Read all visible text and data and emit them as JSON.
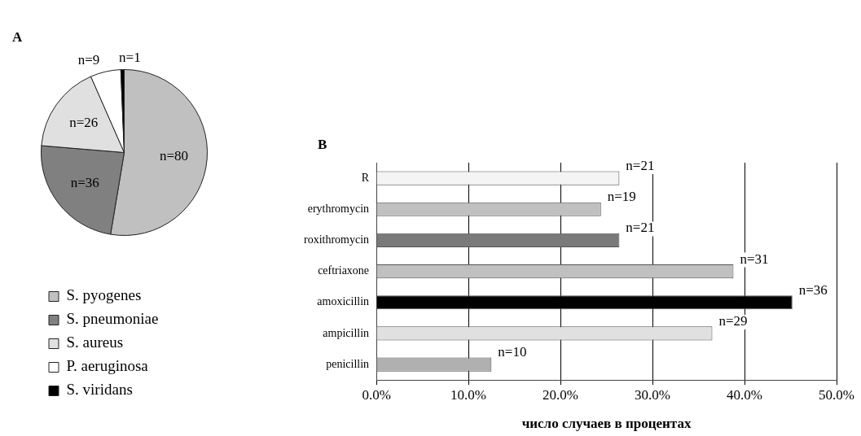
{
  "chart_data": [
    {
      "type": "pie",
      "title": "A",
      "categories": [
        "S. pyogenes",
        "S. pneumoniae",
        "S. aureus",
        "P. aeruginosa",
        "S. viridans"
      ],
      "values": [
        80,
        36,
        26,
        9,
        1
      ],
      "value_labels": [
        "n=80",
        "n=36",
        "n=26",
        "n=9",
        "n=1"
      ],
      "colors": [
        "#c0c0c0",
        "#808080",
        "#e0e0e0",
        "#ffffff",
        "#000000"
      ],
      "legend": "bottom left"
    },
    {
      "type": "bar",
      "title": "B",
      "orientation": "horizontal",
      "categories": [
        "R",
        "erythromycin",
        "roxithromycin",
        "ceftriaxone",
        "amoxicillin",
        "ampicillin",
        "penicillin"
      ],
      "values": [
        26.4,
        24.4,
        26.4,
        38.8,
        45.2,
        36.5,
        12.5
      ],
      "annotations": [
        {
          "text": "n=21",
          "x": 26.4,
          "y": "R"
        },
        {
          "text": "n=19",
          "x": 24.4,
          "y": "erythromycin"
        },
        {
          "text": "n=21",
          "x": 26.4,
          "y": "roxithromycin"
        },
        {
          "text": "n=31",
          "x": 38.8,
          "y": "ceftriaxone"
        },
        {
          "text": "n=36",
          "x": 45.2,
          "y": "amoxicillin"
        },
        {
          "text": "n=29",
          "x": 36.5,
          "y": "ampicillin"
        },
        {
          "text": "n=10",
          "x": 12.5,
          "y": "penicillin"
        }
      ],
      "colors": [
        "#f4f4f4",
        "#c0c0c0",
        "#7a7a7a",
        "#c0c0c0",
        "#000000",
        "#e0e0e0",
        "#b0b0b0"
      ],
      "xlim": [
        0,
        50
      ],
      "xticks": [
        {
          "value": 0,
          "label": "0.0%"
        },
        {
          "value": 10,
          "label": "10.0%"
        },
        {
          "value": 20,
          "label": "20.0%"
        },
        {
          "value": 30,
          "label": "30.0%"
        },
        {
          "value": 40,
          "label": "40.0%"
        },
        {
          "value": 50,
          "label": "50.0%"
        }
      ],
      "xlabel": "число случаев в процентах",
      "grid": "x"
    }
  ]
}
